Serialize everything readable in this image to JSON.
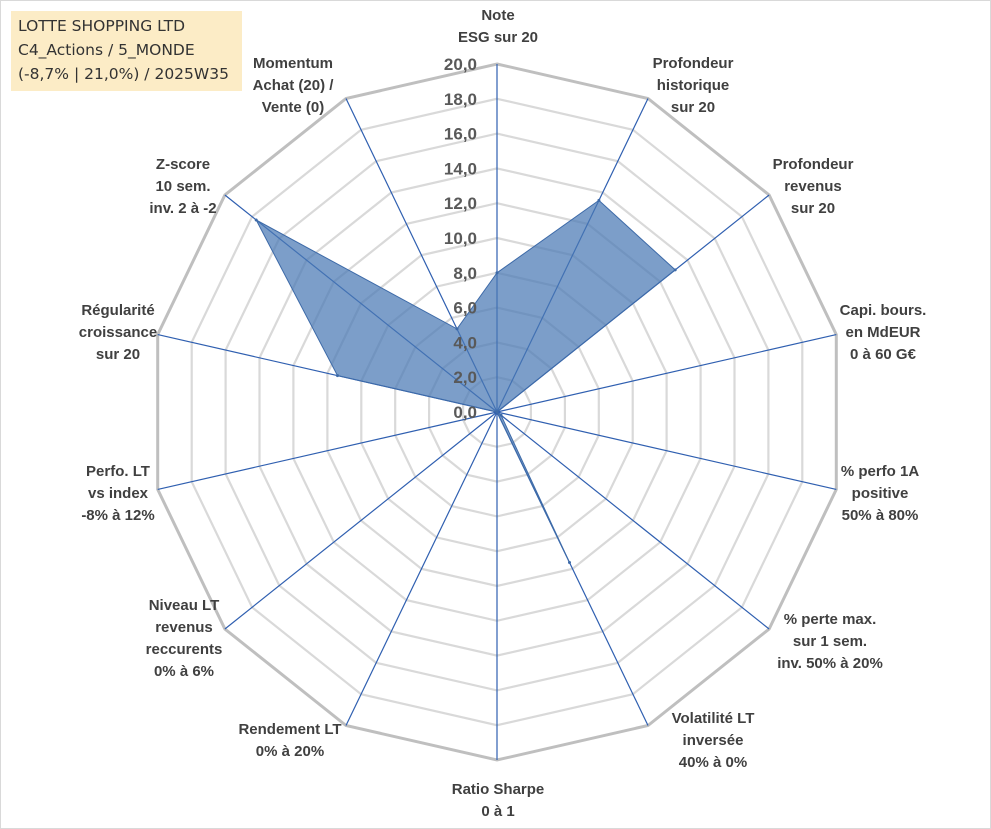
{
  "title_box": {
    "line1": "LOTTE SHOPPING LTD",
    "line2": "C4_Actions / 5_MONDE",
    "line3": "(-8,7% | 21,0%) / 2025W35"
  },
  "colors": {
    "fill": "#4a78b4",
    "fill_opacity": 0.72,
    "spoke": "#2f5fb0",
    "outer_ring": "#bfbfbf",
    "inner_ring": "#d9d9d9",
    "title_bg": "#fcecc6"
  },
  "chart_data": {
    "type": "radar",
    "r_range": [
      0,
      20
    ],
    "r_ticks": [
      "0,0",
      "2,0",
      "4,0",
      "6,0",
      "8,0",
      "10,0",
      "12,0",
      "14,0",
      "16,0",
      "18,0",
      "20,0"
    ],
    "grid": true,
    "axes": [
      {
        "label": [
          "Note",
          "ESG sur 20"
        ],
        "value": 8.0
      },
      {
        "label": [
          "Profondeur",
          "historique",
          "sur 20"
        ],
        "value": 13.5
      },
      {
        "label": [
          "Profondeur",
          "revenus",
          "sur 20"
        ],
        "value": 13.1
      },
      {
        "label": [
          "Capi. bours.",
          "en MdEUR",
          "0 à 60 G€"
        ],
        "value": 0.0
      },
      {
        "label": [
          "% perfo 1A",
          "positive",
          "50% à 80%"
        ],
        "value": 0.0
      },
      {
        "label": [
          "% perte max.",
          "sur 1 sem.",
          "inv. 50% à 20%"
        ],
        "value": 0.3
      },
      {
        "label": [
          "Volatilité LT",
          "inversée",
          "40% à 0%"
        ],
        "value": 9.6
      },
      {
        "label": [
          "Ratio Sharpe",
          "0 à 1"
        ],
        "value": 0.0
      },
      {
        "label": [
          "Rendement LT",
          "0% à 20%"
        ],
        "value": 0.0
      },
      {
        "label": [
          "Niveau LT",
          "revenus",
          "reccurents",
          "0% à 6%"
        ],
        "value": 0.0
      },
      {
        "label": [
          "Perfo. LT",
          "vs index",
          "-8% à 12%"
        ],
        "value": 0.0
      },
      {
        "label": [
          "Régularité",
          "croissance",
          "sur 20"
        ],
        "value": 9.4
      },
      {
        "label": [
          "Z-score",
          "10 sem.",
          "inv. 2 à -2"
        ],
        "value": 17.7
      },
      {
        "label": [
          "Momentum",
          "Achat (20) /",
          "Vente (0)"
        ],
        "value": 5.3
      }
    ]
  }
}
